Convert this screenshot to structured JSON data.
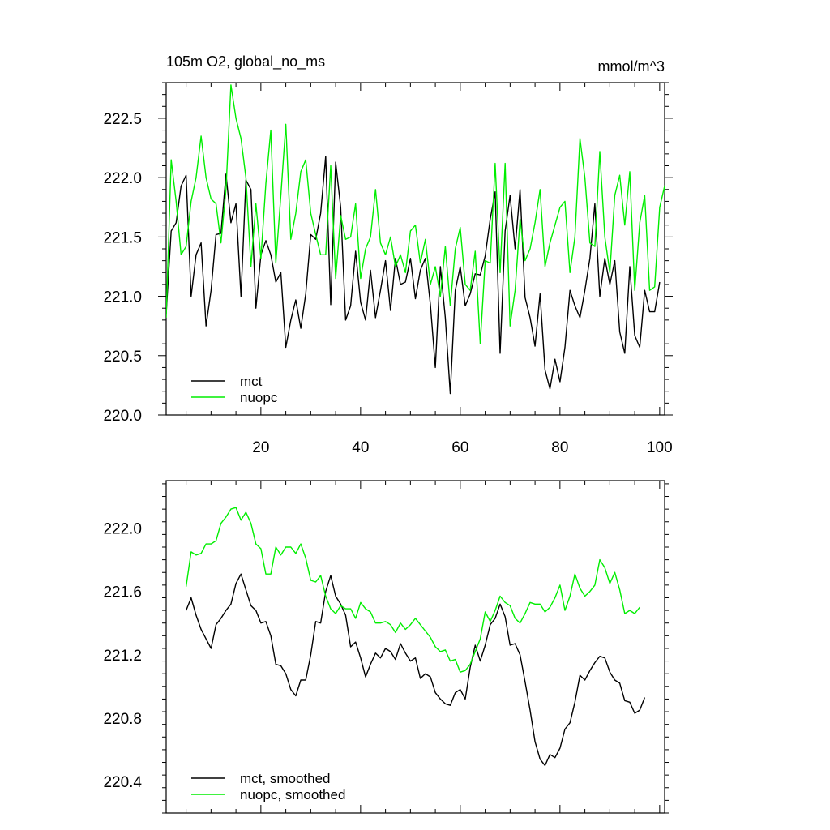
{
  "chart_data": [
    {
      "type": "line",
      "title": "105m O2, global_no_ms",
      "units": "mmol/m^3",
      "xlim": [
        1,
        101
      ],
      "ylim": [
        220.0,
        222.8
      ],
      "xticks": [
        20,
        40,
        60,
        80,
        100
      ],
      "xtick_labels": [
        "20",
        "40",
        "60",
        "80",
        "100"
      ],
      "yticks": [
        220.0,
        220.5,
        221.0,
        221.5,
        222.0,
        222.5
      ],
      "ytick_labels": [
        "220.0",
        "220.5",
        "221.0",
        "221.5",
        "222.0",
        "222.5"
      ],
      "legend_position": "bottom-left",
      "x_start": 1,
      "series": [
        {
          "name": "mct",
          "color": "#000000",
          "values": [
            220.85,
            221.55,
            221.62,
            221.93,
            222.02,
            221.0,
            221.35,
            221.45,
            220.75,
            221.05,
            221.52,
            221.53,
            222.03,
            221.62,
            221.78,
            221.0,
            221.98,
            221.9,
            220.9,
            221.35,
            221.47,
            221.35,
            221.12,
            221.2,
            220.57,
            220.8,
            220.97,
            220.73,
            221.02,
            221.52,
            221.48,
            221.7,
            222.18,
            220.93,
            222.13,
            221.75,
            220.8,
            220.92,
            221.38,
            220.95,
            220.8,
            221.22,
            220.82,
            221.05,
            221.3,
            220.88,
            221.32,
            221.1,
            221.12,
            221.32,
            220.98,
            221.22,
            221.32,
            220.93,
            220.4,
            221.25,
            220.82,
            220.18,
            221.05,
            221.25,
            220.92,
            221.02,
            221.19,
            221.18,
            221.34,
            221.65,
            221.88,
            220.52,
            221.55,
            221.85,
            221.4,
            221.9,
            220.99,
            220.82,
            220.58,
            221.02,
            220.38,
            220.22,
            220.47,
            220.28,
            220.57,
            221.05,
            220.92,
            220.82,
            221.05,
            221.32,
            221.78,
            221.0,
            221.32,
            221.1,
            221.3,
            220.7,
            220.52,
            221.25,
            220.67,
            220.57,
            221.05,
            220.87,
            220.87,
            221.12
          ]
        },
        {
          "name": "nuopc",
          "color": "#00ee00",
          "values": [
            220.82,
            222.15,
            221.8,
            221.35,
            221.42,
            221.8,
            222.0,
            222.35,
            222.0,
            221.82,
            221.78,
            221.45,
            221.9,
            222.78,
            222.5,
            222.33,
            222.0,
            221.25,
            221.78,
            221.32,
            221.95,
            222.4,
            221.28,
            221.85,
            222.45,
            221.48,
            221.7,
            222.05,
            222.15,
            221.7,
            221.52,
            221.35,
            221.35,
            222.1,
            221.15,
            221.68,
            221.48,
            221.5,
            221.78,
            221.15,
            221.4,
            221.5,
            221.9,
            221.45,
            221.35,
            221.5,
            221.25,
            221.35,
            221.2,
            221.55,
            221.6,
            221.28,
            221.48,
            221.1,
            221.25,
            221.0,
            221.42,
            220.92,
            221.4,
            221.58,
            221.1,
            221.05,
            221.38,
            220.6,
            221.3,
            221.28,
            222.12,
            221.2,
            222.12,
            220.75,
            221.05,
            221.65,
            221.3,
            221.4,
            221.62,
            221.9,
            221.25,
            221.45,
            221.6,
            221.75,
            221.8,
            221.2,
            221.5,
            222.33,
            222.0,
            221.45,
            221.42,
            222.22,
            221.5,
            221.2,
            221.85,
            222.02,
            221.6,
            222.05,
            221.05,
            221.62,
            221.85,
            221.05,
            221.08,
            221.75,
            221.93,
            221.28
          ]
        }
      ]
    },
    {
      "type": "line",
      "xlim": [
        1,
        101
      ],
      "ylim": [
        220.2,
        222.3
      ],
      "xticks": [
        20,
        40,
        60,
        80,
        100
      ],
      "yticks": [
        220.4,
        220.8,
        221.2,
        221.6,
        222.0
      ],
      "ytick_labels": [
        "220.4",
        "220.8",
        "221.2",
        "221.6",
        "222.0"
      ],
      "legend_position": "bottom-left",
      "x_start": 5,
      "series": [
        {
          "name": "mct, smoothed",
          "color": "#000000",
          "values": [
            221.48,
            221.56,
            221.45,
            221.36,
            221.3,
            221.24,
            221.39,
            221.43,
            221.48,
            221.52,
            221.65,
            221.71,
            221.61,
            221.51,
            221.48,
            221.4,
            221.41,
            221.32,
            221.14,
            221.13,
            221.08,
            220.98,
            220.94,
            221.04,
            221.04,
            221.2,
            221.41,
            221.4,
            221.6,
            221.7,
            221.57,
            221.52,
            221.45,
            221.25,
            221.28,
            221.18,
            221.06,
            221.14,
            221.21,
            221.18,
            221.24,
            221.22,
            221.17,
            221.27,
            221.21,
            221.16,
            221.18,
            221.05,
            221.08,
            221.06,
            220.96,
            220.92,
            220.89,
            220.88,
            220.96,
            220.98,
            220.92,
            221.12,
            221.26,
            221.16,
            221.26,
            221.39,
            221.43,
            221.52,
            221.44,
            221.26,
            221.27,
            221.2,
            221.03,
            220.85,
            220.65,
            220.54,
            220.5,
            220.57,
            220.55,
            220.61,
            220.73,
            220.77,
            220.9,
            221.07,
            221.04,
            221.1,
            221.15,
            221.19,
            221.18,
            221.09,
            221.04,
            221.02,
            220.91,
            220.9,
            220.83,
            220.85,
            220.93
          ]
        },
        {
          "name": "nuopc, smoothed",
          "color": "#00ee00",
          "values": [
            221.63,
            221.85,
            221.83,
            221.84,
            221.9,
            221.9,
            221.92,
            222.03,
            222.07,
            222.12,
            222.13,
            222.05,
            222.1,
            222.03,
            221.9,
            221.87,
            221.71,
            221.71,
            221.88,
            221.83,
            221.88,
            221.88,
            221.84,
            221.9,
            221.81,
            221.67,
            221.66,
            221.7,
            221.57,
            221.49,
            221.46,
            221.51,
            221.49,
            221.49,
            221.43,
            221.53,
            221.49,
            221.47,
            221.4,
            221.4,
            221.41,
            221.39,
            221.34,
            221.4,
            221.36,
            221.39,
            221.43,
            221.39,
            221.35,
            221.31,
            221.25,
            221.22,
            221.23,
            221.16,
            221.17,
            221.09,
            221.1,
            221.14,
            221.22,
            221.3,
            221.47,
            221.41,
            221.48,
            221.57,
            221.53,
            221.51,
            221.43,
            221.4,
            221.46,
            221.53,
            221.52,
            221.52,
            221.47,
            221.5,
            221.56,
            221.64,
            221.48,
            221.57,
            221.71,
            221.62,
            221.57,
            221.6,
            221.64,
            221.8,
            221.75,
            221.65,
            221.72,
            221.61,
            221.46,
            221.48,
            221.46,
            221.5
          ]
        }
      ]
    }
  ]
}
